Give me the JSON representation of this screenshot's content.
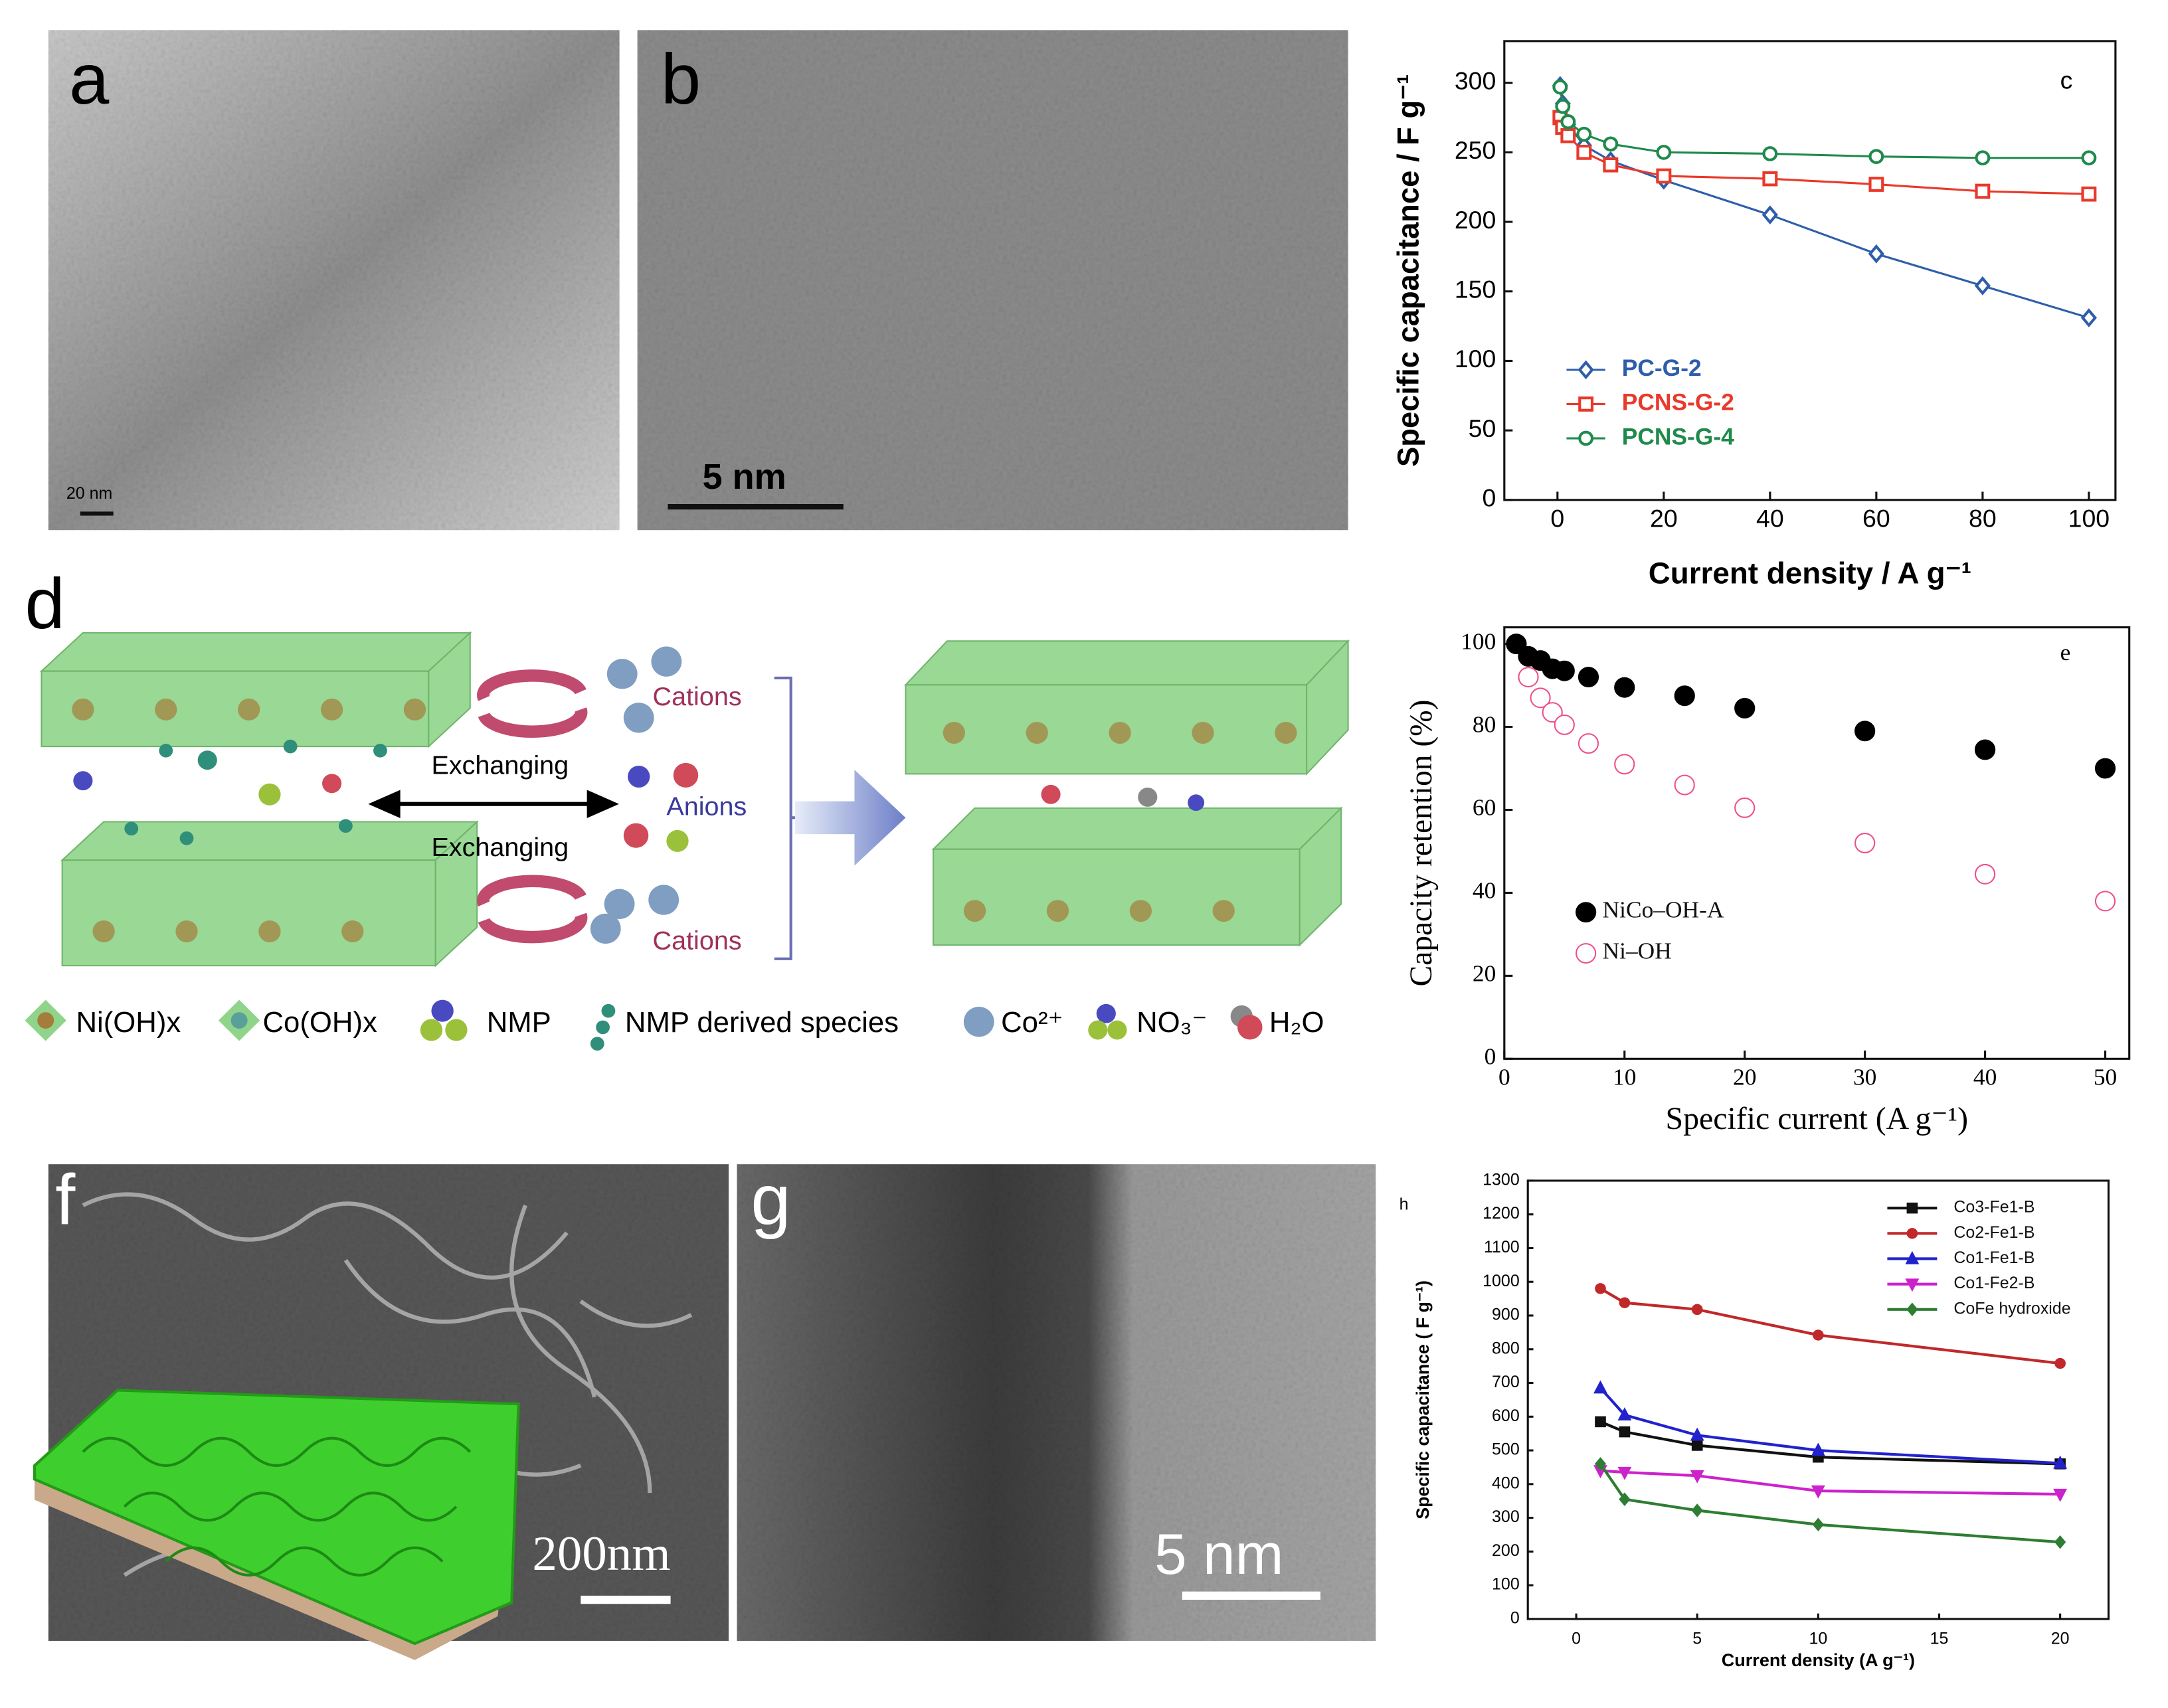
{
  "panels": {
    "a": {
      "label": "a",
      "scale_bar": "20 nm"
    },
    "b": {
      "label": "b",
      "scale_bar": "5 nm"
    },
    "d": {
      "label": "d",
      "texts": [
        "Cations",
        "Exchanging",
        "Anions",
        "Exchanging",
        "Cations"
      ],
      "legend": [
        "Ni(OH)x",
        "Co(OH)x",
        "NMP",
        "NMP derived species",
        "Co²⁺",
        "NO₃⁻",
        "H₂O"
      ]
    },
    "f": {
      "label": "f",
      "scale_bar": "200nm"
    },
    "g": {
      "label": "g",
      "scale_bar": "5 nm"
    }
  },
  "chart_data": [
    {
      "type": "line",
      "label": "c",
      "xlabel": "Current density / A g⁻¹",
      "ylabel": "Specific capacitance / F g⁻¹",
      "x": [
        0.5,
        1,
        2,
        5,
        10,
        20,
        40,
        60,
        80,
        100
      ],
      "xlim": [
        -10,
        105
      ],
      "xticks": [
        0,
        20,
        40,
        60,
        80,
        100
      ],
      "ylim": [
        0,
        330
      ],
      "yticks": [
        0,
        50,
        100,
        150,
        200,
        250,
        300
      ],
      "series": [
        {
          "name": "PC-G-2",
          "color": "#2e5eaa",
          "marker": "diamond",
          "filled": false,
          "values": [
            298,
            285,
            270,
            255,
            244,
            230,
            205,
            177,
            154,
            131
          ]
        },
        {
          "name": "PCNS-G-2",
          "color": "#e8392a",
          "marker": "square",
          "filled": false,
          "values": [
            275,
            268,
            262,
            250,
            241,
            233,
            231,
            227,
            222,
            220
          ]
        },
        {
          "name": "PCNS-G-4",
          "color": "#1f8a4c",
          "marker": "circle",
          "filled": false,
          "values": [
            297,
            283,
            272,
            263,
            256,
            250,
            249,
            247,
            246,
            246
          ]
        }
      ]
    },
    {
      "type": "scatter",
      "label": "e",
      "xlabel": "Specific current (A g⁻¹)",
      "ylabel": "Capacity retention (%)",
      "xlim": [
        0,
        52
      ],
      "xticks": [
        0,
        10,
        20,
        30,
        40,
        50
      ],
      "ylim": [
        0,
        104
      ],
      "yticks": [
        0,
        20,
        40,
        60,
        80,
        100
      ],
      "series": [
        {
          "name": "NiCo–OH-A",
          "color": "#000000",
          "marker": "circle",
          "filled": true,
          "x": [
            1,
            2,
            3,
            4,
            5,
            7,
            10,
            15,
            20,
            30,
            40,
            50
          ],
          "values": [
            100,
            97,
            96,
            94,
            93.5,
            92,
            89.5,
            87.5,
            84.5,
            79,
            74.5,
            70
          ]
        },
        {
          "name": "Ni–OH",
          "color": "#ee4f8d",
          "marker": "circle",
          "filled": false,
          "x": [
            2,
            3,
            4,
            5,
            7,
            10,
            15,
            20,
            30,
            40,
            50
          ],
          "values": [
            92,
            87,
            83.5,
            80.5,
            76,
            71,
            66,
            60.5,
            52,
            44.5,
            38
          ]
        }
      ]
    },
    {
      "type": "line",
      "label": "h",
      "xlabel": "Current density (A g⁻¹)",
      "ylabel": "Specific capacitance ( F g⁻¹)",
      "x": [
        1,
        2,
        5,
        10,
        20
      ],
      "xlim": [
        -2,
        22
      ],
      "xticks": [
        0,
        5,
        10,
        15,
        20
      ],
      "ylim": [
        0,
        1300
      ],
      "yticks": [
        0,
        100,
        200,
        300,
        400,
        500,
        600,
        700,
        800,
        900,
        1000,
        1100,
        1200,
        1300
      ],
      "series": [
        {
          "name": "Co3-Fe1-B",
          "color": "#111111",
          "marker": "square",
          "filled": true,
          "values": [
            585,
            555,
            515,
            480,
            460
          ]
        },
        {
          "name": "Co2-Fe1-B",
          "color": "#c0282a",
          "marker": "circle",
          "filled": true,
          "values": [
            980,
            938,
            918,
            842,
            758
          ]
        },
        {
          "name": "Co1-Fe1-B",
          "color": "#2222cc",
          "marker": "triangle",
          "filled": true,
          "values": [
            685,
            605,
            545,
            500,
            462
          ]
        },
        {
          "name": "Co1-Fe2-B",
          "color": "#cc22cc",
          "marker": "triangle-down",
          "filled": true,
          "values": [
            440,
            435,
            425,
            380,
            370
          ]
        },
        {
          "name": "CoFe hydroxide",
          "color": "#2e7d32",
          "marker": "diamond",
          "filled": true,
          "values": [
            460,
            355,
            322,
            280,
            228
          ]
        }
      ]
    }
  ]
}
